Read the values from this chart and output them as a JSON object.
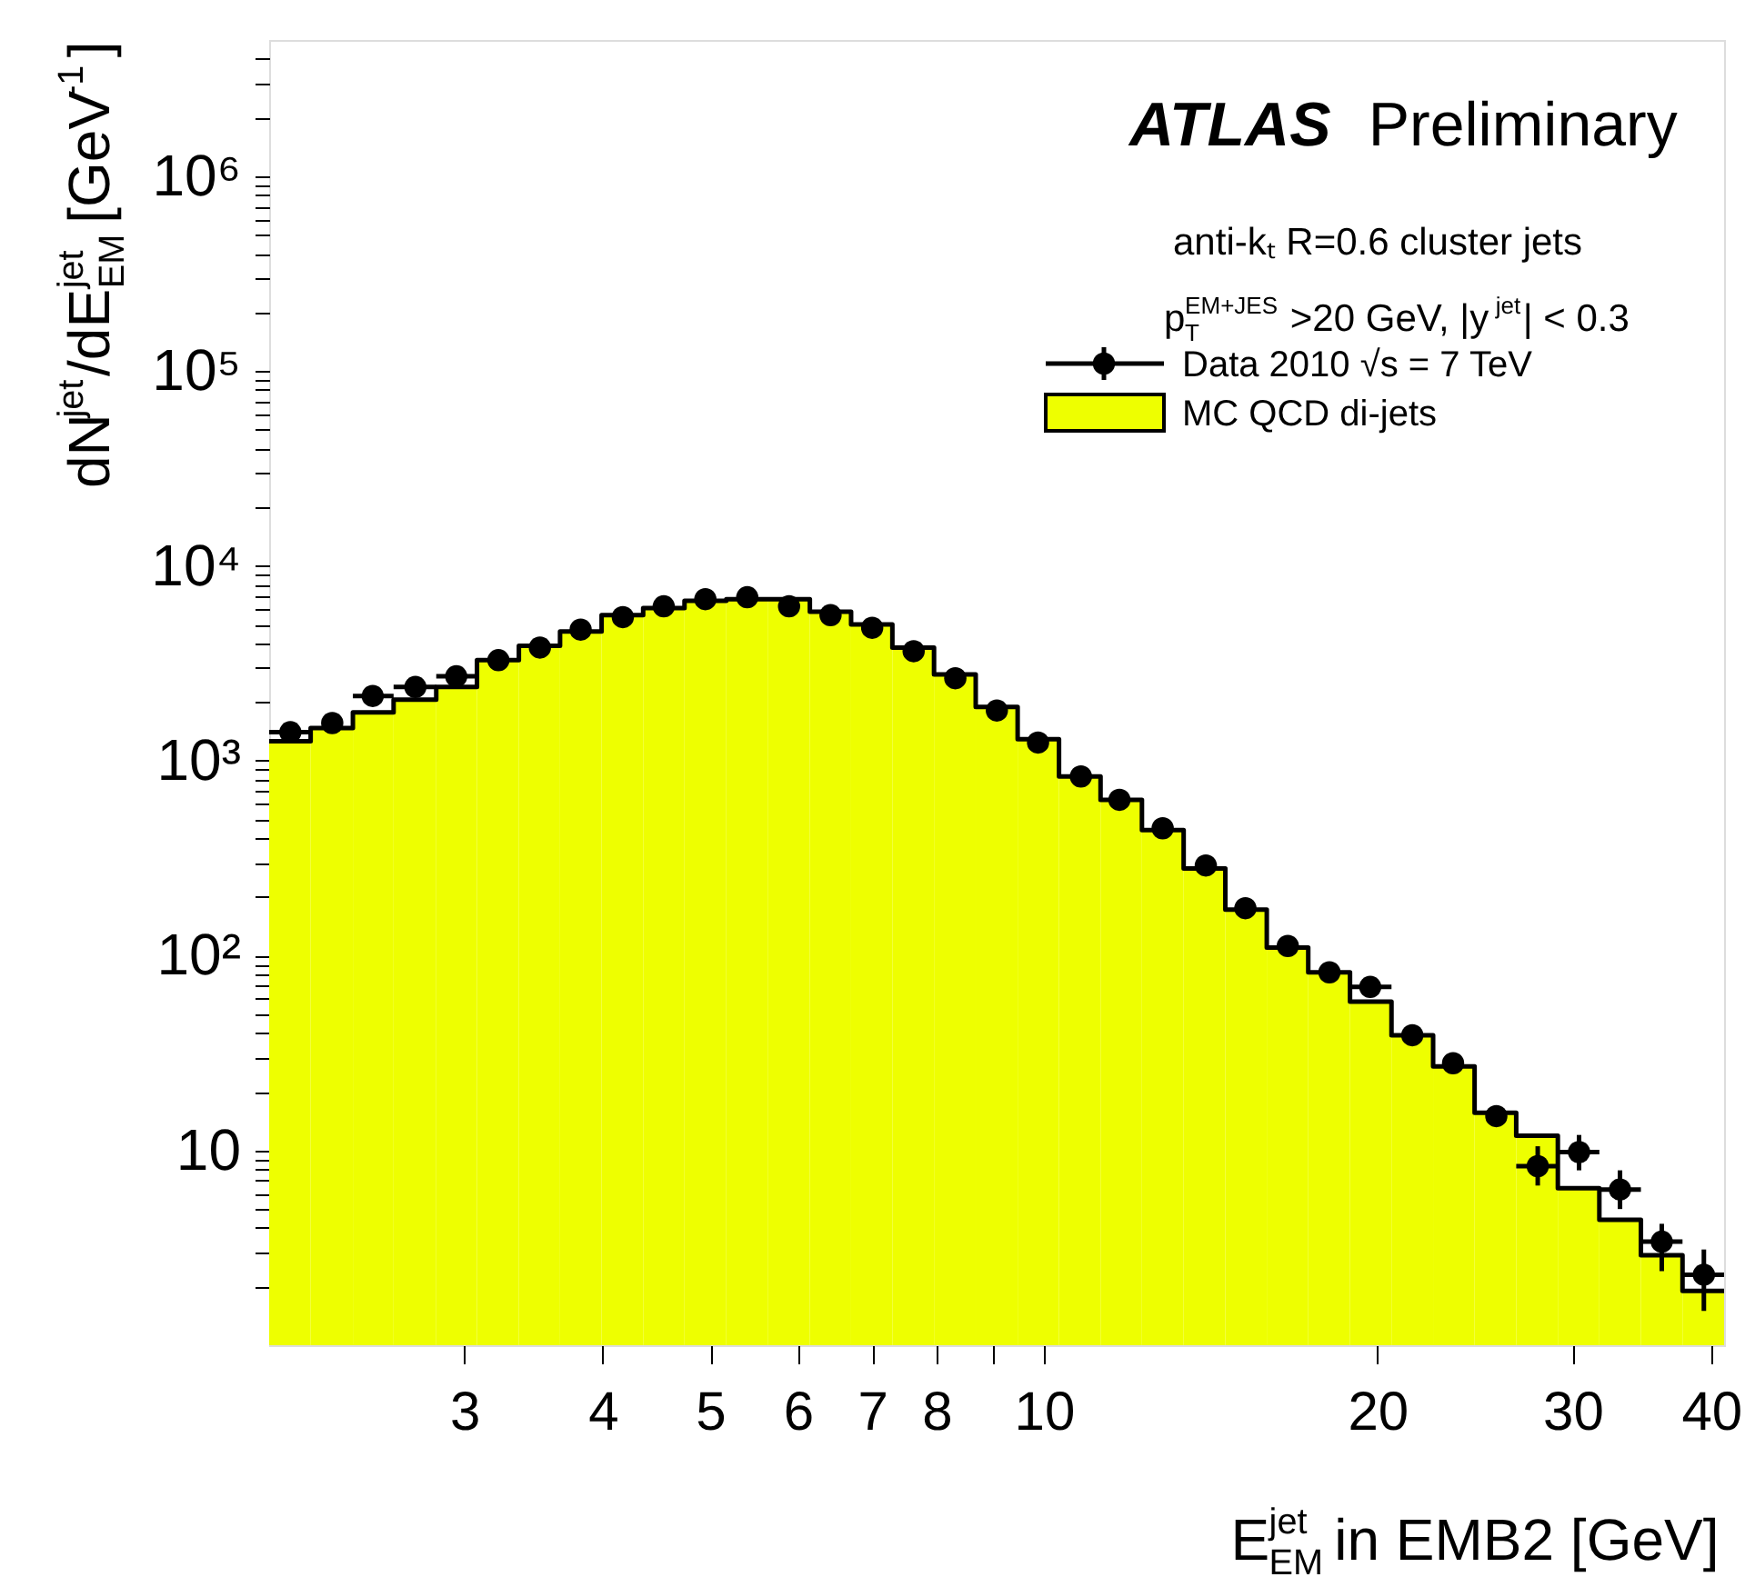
{
  "chart_data": {
    "type": "histogram",
    "bins": [
      2,
      2.18,
      2.38,
      2.59,
      2.83,
      3.08,
      3.36,
      3.66,
      3.99,
      4.35,
      4.74,
      5.17,
      5.64,
      6.15,
      6.7,
      7.3,
      7.96,
      8.68,
      9.47,
      10.32,
      11.25,
      12.26,
      13.37,
      14.58,
      15.89,
      17.32,
      18.89,
      20.59,
      22.45,
      24.47,
      26.68,
      29.09,
      31.71,
      34.57,
      37.69,
      41.09
    ],
    "xlabel": "E$^{jet}$$_{EM}$ in EMB2 [GeV]",
    "ylabel": "dN$^{jet}$/dE$^{jet}$$_{EM}$ [GeV$^{-1}$]",
    "annotations": [
      "ATLAS Preliminary",
      "anti-kₜ R=0.6 cluster jets",
      "p$^{EM+JES}$$_{T}$ >20 GeV, |y$^{jet}$| < 0.3"
    ],
    "series": [
      {
        "name": "Data 2010 √s = 7 TeV",
        "type": "scatter",
        "color": "#000000",
        "x": [
          2.09,
          2.28,
          2.48,
          2.71,
          2.95,
          3.22,
          3.51,
          3.82,
          4.17,
          4.54,
          4.95,
          5.4,
          5.89,
          6.42,
          7.0,
          7.63,
          8.32,
          9.07,
          9.88,
          10.8,
          11.7,
          12.8,
          14.0,
          15.2,
          16.6,
          18.1,
          19.7,
          21.5,
          23.4,
          25.6,
          27.9,
          30.4,
          33.1,
          36.1,
          39.4
        ],
        "values": [
          1400,
          1560,
          2150,
          2390,
          2710,
          3280,
          3810,
          4710,
          5460,
          6200,
          6750,
          6900,
          6200,
          5580,
          4810,
          3650,
          2650,
          1810,
          1240,
          830,
          630,
          450,
          290,
          175,
          112,
          82,
          69,
          39,
          28,
          15,
          8.3,
          9.8,
          6.3,
          3.4,
          2.3
        ],
        "errors": [
          null,
          null,
          null,
          null,
          null,
          null,
          null,
          null,
          null,
          null,
          null,
          null,
          null,
          null,
          null,
          null,
          null,
          null,
          null,
          null,
          null,
          null,
          null,
          null,
          null,
          null,
          null,
          null,
          null,
          null,
          [
            6.6,
            10.5
          ],
          [
            7.9,
            12
          ],
          [
            5,
            7.9
          ],
          [
            2.4,
            4.2
          ],
          [
            1.5,
            3.1
          ]
        ],
        "xerrors": [
          [
            2,
            2.18
          ],
          null,
          [
            2.38,
            2.59
          ],
          [
            2.59,
            2.83
          ],
          [
            2.83,
            3.08
          ],
          null,
          null,
          null,
          null,
          null,
          null,
          null,
          null,
          null,
          null,
          null,
          null,
          null,
          null,
          null,
          null,
          null,
          null,
          null,
          null,
          null,
          [
            18.89,
            20.59
          ],
          null,
          null,
          null,
          [
            26.68,
            29.09
          ],
          [
            29.09,
            31.71
          ],
          [
            31.71,
            34.57
          ],
          [
            34.57,
            37.69
          ],
          [
            37.69,
            41.09
          ]
        ]
      },
      {
        "name": "MC QCD di-jets",
        "color": "#eeff00",
        "values": [
          1260,
          1470,
          1770,
          2060,
          2390,
          3280,
          3890,
          4610,
          5580,
          6070,
          6610,
          6750,
          6750,
          5820,
          5010,
          3810,
          2770,
          1890,
          1290,
          830,
          630,
          440,
          280,
          172,
          110,
          82,
          58,
          39,
          27,
          15.6,
          11.9,
          6.4,
          4.4,
          2.9,
          1.9
        ]
      },
      {
        "type": "step",
        "color": "#000000",
        "x": [
          2,
          2.18,
          2.38,
          2.59,
          2.83,
          3.08,
          3.36,
          3.66,
          3.99,
          4.35,
          4.74,
          5.17,
          5.64,
          6.15,
          6.7,
          7.3,
          7.96,
          8.68,
          9.47,
          10.32,
          11.25,
          12.26,
          13.37,
          14.58,
          15.89,
          17.32,
          18.89,
          20.59,
          22.45,
          24.47,
          26.68,
          29.09,
          31.71,
          34.57,
          37.69,
          41.09
        ],
        "values": [
          1260,
          1470,
          1770,
          2060,
          2390,
          3280,
          3890,
          4610,
          5580,
          6070,
          6610,
          6750,
          6750,
          5820,
          5010,
          3810,
          2770,
          1890,
          1290,
          830,
          630,
          440,
          280,
          172,
          110,
          82,
          58,
          39,
          27,
          15.6,
          11.9,
          6.4,
          4.4,
          2.9,
          1.9,
          1.9
        ],
        "line_style": "solid"
      }
    ],
    "xlim": [
      2,
      41.09
    ],
    "xticks": [
      3,
      4,
      5,
      6,
      7,
      8,
      {
        "value": 9,
        "label": null
      },
      10,
      20,
      30,
      40
    ],
    "ylim": [
      1,
      5000000
    ],
    "yticks": [
      10,
      {
        "value": 100,
        "label": "10²"
      },
      {
        "value": 1000,
        "label": "10³"
      },
      {
        "value": 10000,
        "label": "10⁴"
      },
      {
        "value": 100000,
        "label": "10⁵"
      },
      {
        "value": 1000000,
        "label": "10⁶"
      },
      {
        "value": 2,
        "label": null
      },
      {
        "value": 3,
        "label": null
      },
      {
        "value": 4,
        "label": null
      },
      {
        "value": 5,
        "label": null
      },
      {
        "value": 6,
        "label": null
      },
      {
        "value": 7,
        "label": null
      },
      {
        "value": 8,
        "label": null
      },
      {
        "value": 9,
        "label": null
      },
      {
        "value": 20,
        "label": null
      },
      {
        "value": 30,
        "label": null
      },
      {
        "value": 40,
        "label": null
      },
      {
        "value": 50,
        "label": null
      },
      {
        "value": 60,
        "label": null
      },
      {
        "value": 70,
        "label": null
      },
      {
        "value": 80,
        "label": null
      },
      {
        "value": 90,
        "label": null
      },
      {
        "value": 200,
        "label": null
      },
      {
        "value": 300,
        "label": null
      },
      {
        "value": 400,
        "label": null
      },
      {
        "value": 500,
        "label": null
      },
      {
        "value": 600,
        "label": null
      },
      {
        "value": 700,
        "label": null
      },
      {
        "value": 800,
        "label": null
      },
      {
        "value": 900,
        "label": null
      },
      {
        "value": 2000,
        "label": null
      },
      {
        "value": 3000,
        "label": null
      },
      {
        "value": 4000,
        "label": null
      },
      {
        "value": 5000,
        "label": null
      },
      {
        "value": 6000,
        "label": null
      },
      {
        "value": 7000,
        "label": null
      },
      {
        "value": 8000,
        "label": null
      },
      {
        "value": 9000,
        "label": null
      },
      {
        "value": 20000,
        "label": null
      },
      {
        "value": 30000,
        "label": null
      },
      {
        "value": 40000,
        "label": null
      },
      {
        "value": 50000,
        "label": null
      },
      {
        "value": 60000,
        "label": null
      },
      {
        "value": 70000,
        "label": null
      },
      {
        "value": 80000,
        "label": null
      },
      {
        "value": 90000,
        "label": null
      },
      {
        "value": 200000,
        "label": null
      },
      {
        "value": 300000,
        "label": null
      },
      {
        "value": 400000,
        "label": null
      },
      {
        "value": 500000,
        "label": null
      },
      {
        "value": 600000,
        "label": null
      },
      {
        "value": 700000,
        "label": null
      },
      {
        "value": 800000,
        "label": null
      },
      {
        "value": 900000,
        "label": null
      },
      {
        "value": 2000000,
        "label": null
      },
      {
        "value": 3000000,
        "label": null
      },
      {
        "value": 4000000,
        "label": null
      }
    ],
    "log": "xy",
    "grid": false,
    "legend": "top right"
  }
}
